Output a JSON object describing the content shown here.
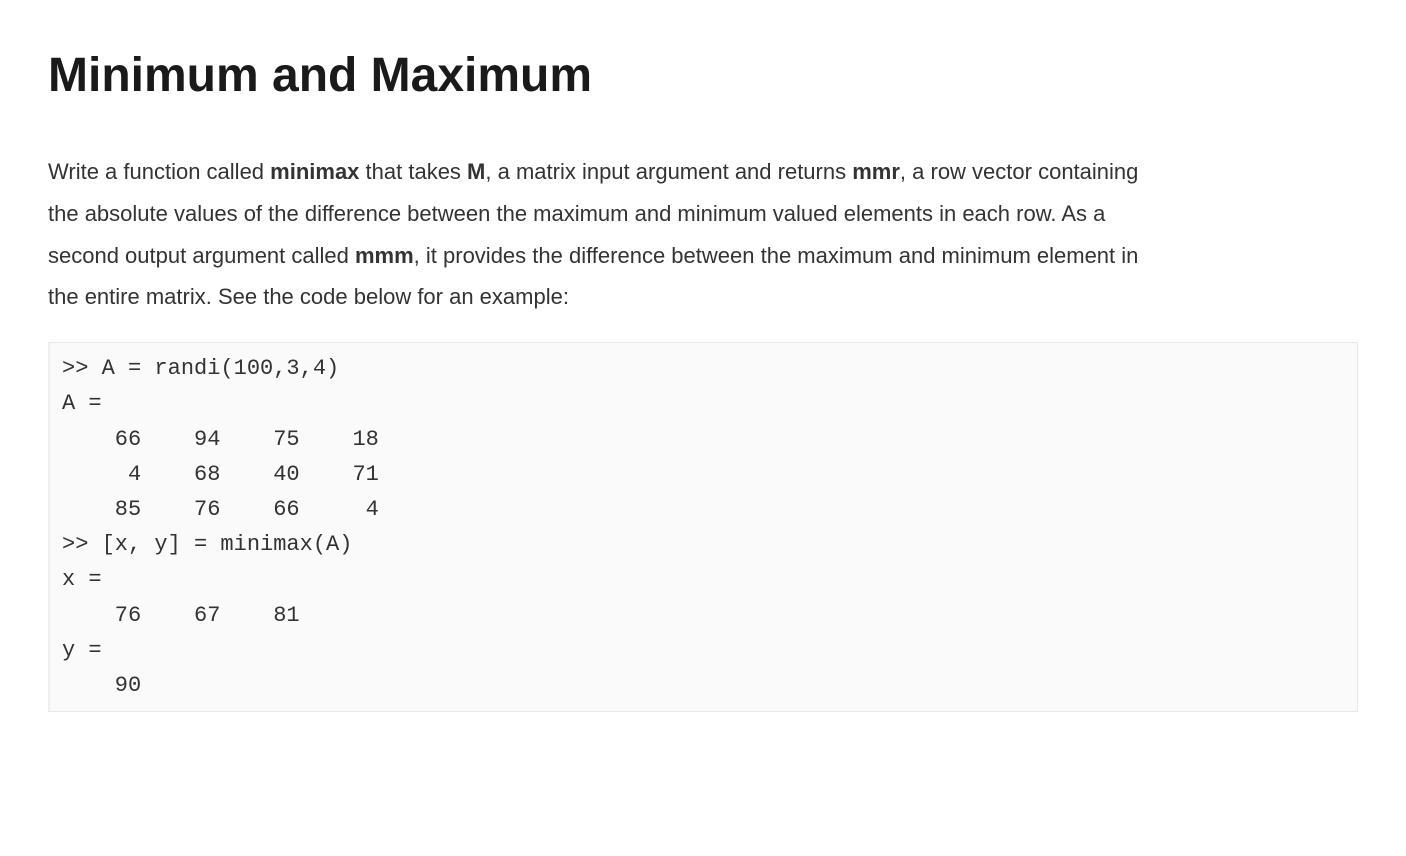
{
  "page": {
    "title": "Minimum and Maximum"
  },
  "description": {
    "text_before_minimax": "Write a function called ",
    "func_name": "minimax",
    "text_after_minimax": " that takes ",
    "arg_M": "M",
    "text_after_M": ", a matrix input argument and returns ",
    "ret_mmr": "mmr",
    "text_after_mmr": ", a row vector containing the absolute values of the difference between the maximum and minimum valued elements in each row. As a second output argument called ",
    "ret_mmm": "mmm",
    "text_after_mmm": ", it provides the difference between the maximum and minimum element in the entire matrix. See the code below for an example:"
  },
  "code_example": {
    "lines": [
      ">> A = randi(100,3,4)",
      "A =",
      "    66    94    75    18",
      "     4    68    40    71",
      "    85    76    66     4",
      ">> [x, y] = minimax(A)",
      "x =",
      "    76    67    81",
      "y =",
      "    90"
    ]
  },
  "styling": {
    "title_fontsize": 48,
    "title_fontweight": 700,
    "title_color": "#1a1a1a",
    "body_fontsize": 22,
    "body_lineheight": 1.9,
    "body_color": "#333333",
    "code_fontsize": 22,
    "code_lineheight": 1.6,
    "code_background": "#f9faf9",
    "code_border_color": "#e8e8e8",
    "code_fontfamily": "monospace",
    "background_color": "#ffffff"
  }
}
